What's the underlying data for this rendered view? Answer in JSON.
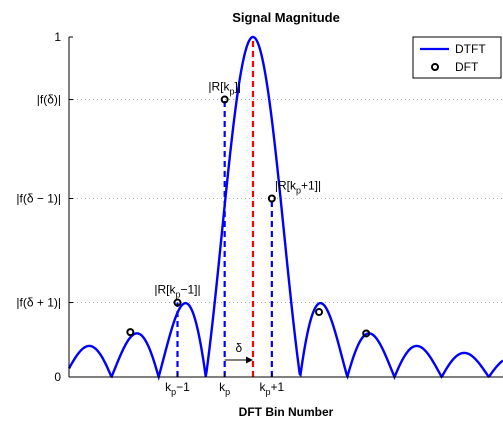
{
  "chart_data": {
    "type": "line",
    "title": "Signal Magnitude",
    "xlabel": "DFT Bin Number",
    "ylabel": "",
    "xlim": [
      -3.3,
      5.9
    ],
    "ylim": [
      0,
      1
    ],
    "grid": "horizontal-dotted",
    "legend_placement": "top-right",
    "legend": [
      {
        "name": "DTFT",
        "kind": "line",
        "color": "#0000FF"
      },
      {
        "name": "DFT",
        "kind": "marker",
        "color": "#000000"
      }
    ],
    "delta": 0.6,
    "series": [
      {
        "name": "DTFT",
        "type": "line",
        "description": "|sinc| magnitude centered at the DTFT peak",
        "peak_x": 0.6,
        "color": "#0000FF"
      },
      {
        "name": "DFT",
        "type": "scatter",
        "x": [
          -2,
          -1,
          0,
          1,
          2,
          3
        ],
        "y": [
          0.132,
          0.219,
          0.816,
          0.525,
          0.191,
          0.128
        ],
        "color": "#000000"
      }
    ],
    "yticks": [
      {
        "value": 0,
        "label": "0"
      },
      {
        "value": 0.219,
        "label": "|f(δ + 1)|"
      },
      {
        "value": 0.525,
        "label": "|f(δ − 1)|"
      },
      {
        "value": 0.816,
        "label": "|f(δ)|"
      },
      {
        "value": 1,
        "label": "1"
      }
    ],
    "xticks": [
      {
        "value": -1,
        "label_main": "k",
        "label_sub": "p",
        "label_tail": "−1"
      },
      {
        "value": 0,
        "label_main": "k",
        "label_sub": "p",
        "label_tail": ""
      },
      {
        "value": 1,
        "label_main": "k",
        "label_sub": "p",
        "label_tail": "+1"
      }
    ],
    "vlines": [
      {
        "x": -1,
        "y_top": 0.219,
        "color": "#0000FF",
        "style": "dashed"
      },
      {
        "x": 0,
        "y_top": 0.816,
        "color": "#0000FF",
        "style": "dashed"
      },
      {
        "x": 1,
        "y_top": 0.525,
        "color": "#0000FF",
        "style": "dashed"
      },
      {
        "x": 0.6,
        "y_top": 1,
        "color": "#FF0000",
        "style": "dashed"
      }
    ],
    "annotations": [
      {
        "x": -1,
        "y": 0.219,
        "main": "|R[k",
        "sub": "p",
        "tail": "−1]|",
        "anchor": "center"
      },
      {
        "x": 0,
        "y": 0.816,
        "main": "|R[k",
        "sub": "p",
        "tail": "]|",
        "anchor": "center"
      },
      {
        "x": 1,
        "y": 0.525,
        "main": "|R[k",
        "sub": "p",
        "tail": "+1]|",
        "anchor": "left"
      }
    ],
    "delta_annotation": {
      "symbol": "δ",
      "from_x": 0,
      "to_x": 0.6,
      "y": 0.05
    }
  }
}
